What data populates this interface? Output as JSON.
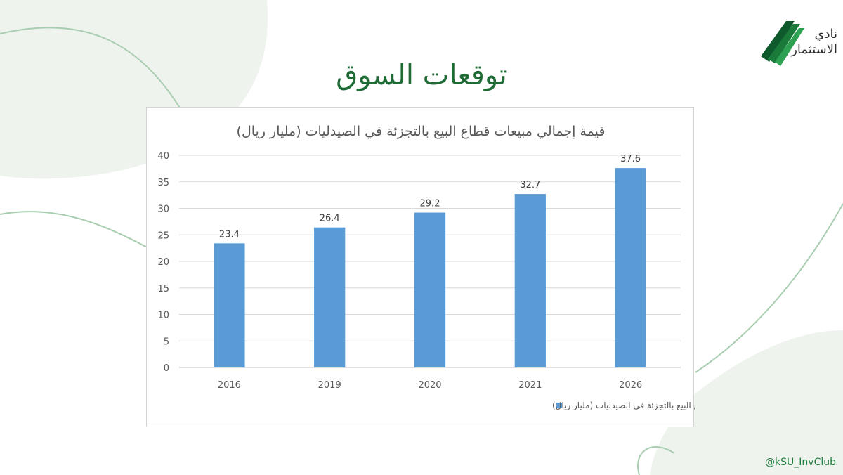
{
  "slide": {
    "title": "توقعات السوق",
    "handle": "@kSU_InvClub"
  },
  "logo": {
    "line1": "نادي",
    "line2": "الاستثمار",
    "colors": [
      "#0f5a2c",
      "#1a7a3a",
      "#2ea052"
    ]
  },
  "colors": {
    "title": "#1e6b35",
    "bar": "#5b9bd5",
    "decor_fill": "#eef3ee",
    "decor_line": "#a9cdb0"
  },
  "chart_data": {
    "type": "bar",
    "title": "قيمة إجمالي مبيعات قطاع البيع بالتجزئة في الصيدليات (مليار ريال)",
    "categories": [
      "2016",
      "2019",
      "2020",
      "2021",
      "2026"
    ],
    "series": [
      {
        "name": "قيمة إجمالي مبيعات قطاع البيع بالتجزئة في الصيدليات (مليار ريال)",
        "values": [
          23.4,
          26.4,
          29.2,
          32.7,
          37.6
        ]
      }
    ],
    "ylim": [
      0,
      40
    ],
    "yticks": [
      0,
      5,
      10,
      15,
      20,
      25,
      30,
      35,
      40
    ],
    "grid": true,
    "data_labels": true,
    "legend": "bottom"
  }
}
